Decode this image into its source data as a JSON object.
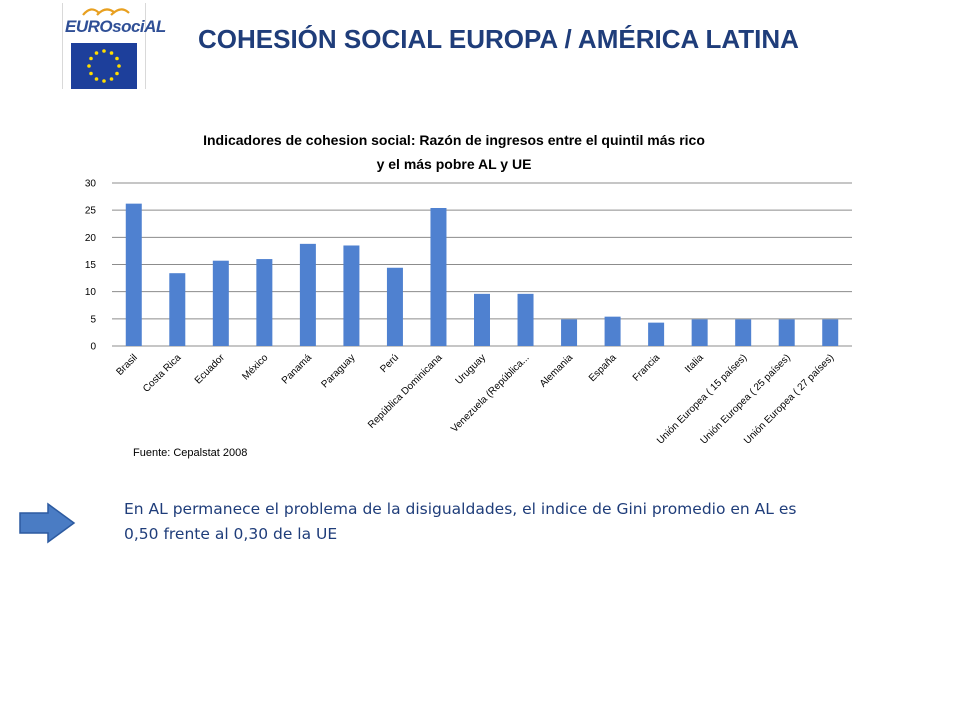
{
  "logo": {
    "text": "EUROsociAL"
  },
  "header": {
    "title": "COHESIÓN SOCIAL EUROPA / AMÉRICA LATINA"
  },
  "chart_data": {
    "type": "bar",
    "title": "Indicadores de cohesion social:  Razón de ingresos entre el quintil más rico y el más pobre AL y UE",
    "title_lines": [
      "Indicadores de cohesion social:  Razón de ingresos entre el quintil más rico",
      "y el más pobre AL y UE"
    ],
    "xlabel": "",
    "ylabel": "",
    "ylim": [
      0,
      30
    ],
    "yticks": [
      0,
      5,
      10,
      15,
      20,
      25,
      30
    ],
    "grid": true,
    "legend": "none",
    "bar_color": "#4f81d0",
    "categories": [
      "Brasil",
      "Costa Rica",
      "Ecuador",
      "México",
      "Panamá",
      "Paraguay",
      "Perú",
      "República Dominicana",
      "Uruguay",
      "Venezuela (República...",
      "Alemania",
      "España",
      "Francia",
      "Italia",
      "Unión Europea ( 15 países)",
      "Unión Europea ( 25 países)",
      "Unión Europea ( 27 países)"
    ],
    "values": [
      26.2,
      13.4,
      15.7,
      16.0,
      18.8,
      18.5,
      14.4,
      25.4,
      9.6,
      9.6,
      4.9,
      5.4,
      4.3,
      4.9,
      4.9,
      4.9,
      4.9
    ]
  },
  "source": {
    "text": "Fuente: Cepalstat 2008"
  },
  "note": {
    "text": "En AL permanece el problema de la disigualdades, el indice de Gini promedio en AL es 0,50 frente al 0,30 de la UE"
  },
  "colors": {
    "title": "#1f3d7a",
    "arrow": "#4a7cc4",
    "bar": "#4f81d0"
  }
}
